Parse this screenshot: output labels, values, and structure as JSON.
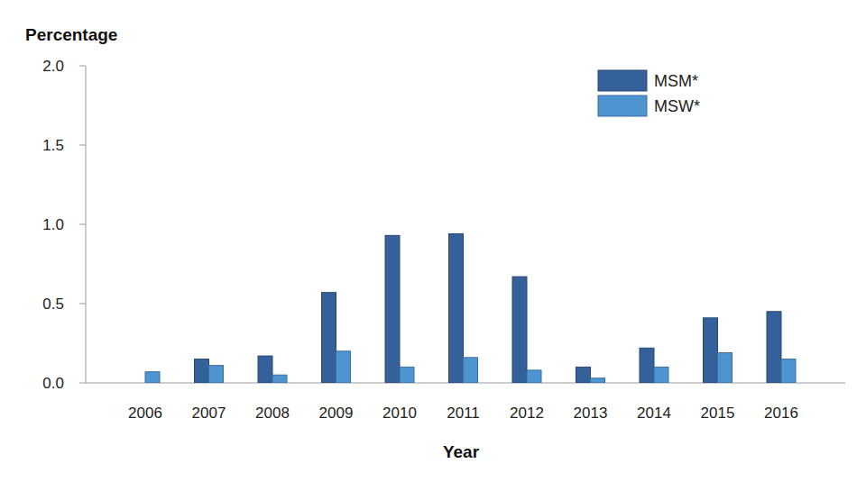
{
  "chart_data": {
    "type": "bar",
    "x_label": "Year",
    "y_label": "Percentage",
    "categories": [
      "2006",
      "2007",
      "2008",
      "2009",
      "2010",
      "2011",
      "2012",
      "2013",
      "2014",
      "2015",
      "2016"
    ],
    "series": [
      {
        "name": "MSM*",
        "color": "#34619a",
        "values": [
          null,
          0.15,
          0.17,
          0.57,
          0.93,
          0.94,
          0.67,
          0.1,
          0.22,
          0.41,
          0.45
        ]
      },
      {
        "name": "MSW*",
        "color": "#4e94d0",
        "values": [
          0.07,
          0.11,
          0.05,
          0.2,
          0.1,
          0.16,
          0.08,
          0.03,
          0.1,
          0.19,
          0.15
        ]
      }
    ],
    "ylim": [
      0,
      2
    ],
    "yticks": [
      {
        "value": 0,
        "label": "0.0"
      },
      0.5,
      {
        "value": 1,
        "label": "1.0"
      },
      1.5,
      {
        "value": 2,
        "label": "2.0"
      }
    ],
    "grid": false,
    "legend": "top-right"
  }
}
